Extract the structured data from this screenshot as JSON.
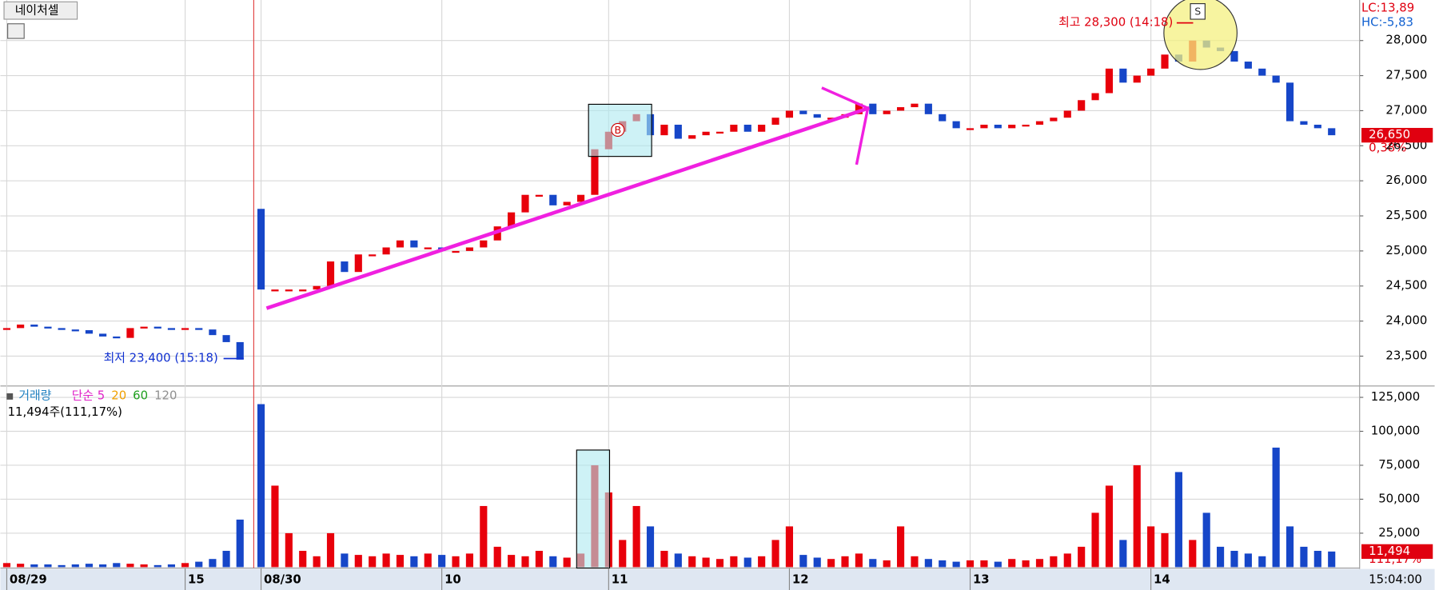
{
  "chart_data": {
    "type": "candlestick",
    "title": "네이처셀",
    "categories": [
      "08/29",
      null,
      null,
      null,
      null,
      null,
      null,
      null,
      null,
      null,
      null,
      null,
      null,
      "15",
      null,
      null,
      null,
      null,
      "08/30",
      null,
      null,
      null,
      null,
      null,
      null,
      null,
      null,
      null,
      null,
      null,
      null,
      "10",
      null,
      null,
      null,
      null,
      null,
      null,
      null,
      null,
      null,
      null,
      null,
      "11",
      null,
      null,
      null,
      null,
      null,
      null,
      null,
      null,
      null,
      null,
      null,
      null,
      "12",
      null,
      null,
      null,
      null,
      null,
      null,
      null,
      null,
      null,
      null,
      null,
      null,
      "13",
      null,
      null,
      null,
      null,
      null,
      null,
      null,
      null,
      null,
      null,
      null,
      null,
      "14",
      null,
      null,
      null,
      null,
      null,
      null,
      null,
      null,
      null,
      null,
      null,
      null,
      null
    ],
    "open": [
      23880,
      23900,
      23950,
      23920,
      23900,
      23880,
      23870,
      23820,
      23780,
      23760,
      23900,
      23920,
      23900,
      23890,
      23900,
      23880,
      23800,
      23700,
      25600,
      24450,
      24450,
      24450,
      24450,
      24500,
      24850,
      24700,
      24950,
      24950,
      25050,
      25150,
      25050,
      25050,
      25000,
      25000,
      25050,
      25150,
      25350,
      25550,
      25800,
      25800,
      25650,
      25700,
      25800,
      26450,
      26700,
      26850,
      26950,
      26650,
      26800,
      26600,
      26650,
      26700,
      26700,
      26800,
      26700,
      26800,
      26900,
      27000,
      26950,
      26900,
      26900,
      26950,
      27100,
      26950,
      27000,
      27050,
      27100,
      26950,
      26850,
      26750,
      26750,
      26800,
      26750,
      26800,
      26800,
      26850,
      26900,
      27000,
      27150,
      27250,
      27600,
      27400,
      27500,
      27600,
      27800,
      27700,
      28000,
      27900,
      27850,
      27700,
      27600,
      27500,
      27400,
      26850,
      26800,
      26750
    ],
    "close": [
      23900,
      23950,
      23920,
      23900,
      23880,
      23870,
      23820,
      23780,
      23760,
      23900,
      23920,
      23900,
      23890,
      23900,
      23880,
      23800,
      23700,
      23450,
      24450,
      24450,
      24450,
      24450,
      24500,
      24850,
      24700,
      24950,
      24950,
      25050,
      25150,
      25050,
      25050,
      25000,
      25000,
      25050,
      25150,
      25350,
      25550,
      25800,
      25800,
      25650,
      25700,
      25800,
      26450,
      26700,
      26850,
      26950,
      26650,
      26800,
      26600,
      26650,
      26700,
      26700,
      26800,
      26700,
      26800,
      26900,
      27000,
      26950,
      26900,
      26900,
      26950,
      27100,
      26950,
      27000,
      27050,
      27100,
      26950,
      26850,
      26750,
      26750,
      26800,
      26750,
      26800,
      26800,
      26850,
      26900,
      27000,
      27150,
      27250,
      27600,
      27400,
      27500,
      27600,
      27800,
      27700,
      28000,
      27900,
      27850,
      27700,
      27600,
      27500,
      27400,
      26850,
      26800,
      26750,
      26650
    ],
    "volume": [
      3000,
      2500,
      2000,
      2000,
      1500,
      2000,
      2500,
      2000,
      3000,
      2500,
      2000,
      1500,
      2000,
      3000,
      4000,
      6000,
      12000,
      35000,
      120000,
      60000,
      25000,
      12000,
      8000,
      25000,
      10000,
      9000,
      8000,
      10000,
      9000,
      8000,
      10000,
      9000,
      8000,
      10000,
      45000,
      15000,
      9000,
      8000,
      12000,
      8000,
      7000,
      10000,
      75000,
      55000,
      20000,
      45000,
      30000,
      12000,
      10000,
      8000,
      7000,
      6000,
      8000,
      7000,
      8000,
      20000,
      30000,
      9000,
      7000,
      6000,
      8000,
      10000,
      6000,
      5000,
      30000,
      8000,
      6000,
      5000,
      4000,
      5000,
      5000,
      4000,
      6000,
      5000,
      6000,
      8000,
      10000,
      15000,
      40000,
      60000,
      20000,
      75000,
      30000,
      25000,
      70000,
      20000,
      40000,
      15000,
      12000,
      10000,
      8000,
      88000,
      30000,
      15000,
      12000,
      11494
    ],
    "up_color": "#e8000b",
    "down_color": "#1646c8",
    "ylim": [
      23100,
      28500
    ],
    "yticks": [
      {
        "value": 23500,
        "label": "23,500"
      },
      {
        "value": 24000,
        "label": "24,000"
      },
      {
        "value": 24500,
        "label": "24,500"
      },
      {
        "value": 25000,
        "label": "25,000"
      },
      {
        "value": 25500,
        "label": "25,500"
      },
      {
        "value": 26000,
        "label": "26,000"
      },
      {
        "value": 26500,
        "label": "26,500"
      },
      {
        "value": 27000,
        "label": "27,000"
      },
      {
        "value": 27500,
        "label": "27,500"
      },
      {
        "value": 28000,
        "label": "28,000"
      }
    ],
    "y2lim": [
      0,
      132000
    ],
    "y2ticks": [
      {
        "value": 25000,
        "label": "25,000"
      },
      {
        "value": 50000,
        "label": "50,000"
      },
      {
        "value": 75000,
        "label": "75,000"
      },
      {
        "value": 100000,
        "label": "100,000"
      },
      {
        "value": 125000,
        "label": "125,000"
      }
    ],
    "grid": true,
    "last_price": {
      "value": 26650,
      "label": "26,650"
    },
    "change_label": "0,38%",
    "volume_last": {
      "value": 11494,
      "label": "11,494"
    },
    "volume_ratio": "111,17%",
    "lc_label": "LC:13,89",
    "hc_label": "HC:-5,83",
    "high_label": "최고 28,300 (14:18)",
    "low_label": "최저 23,400 (15:18)",
    "buy_marker": "B",
    "sell_marker": "S",
    "volume_title": "거래량",
    "ma_legend": [
      {
        "name": "단순 5",
        "color": "#e020c8"
      },
      {
        "name": "20",
        "color": "#f0a000"
      },
      {
        "name": "60",
        "color": "#20a020"
      },
      {
        "name": "120",
        "color": "#909090"
      }
    ],
    "volume_info": "11,494주(111,17%)",
    "time_label": "15:04:00"
  }
}
